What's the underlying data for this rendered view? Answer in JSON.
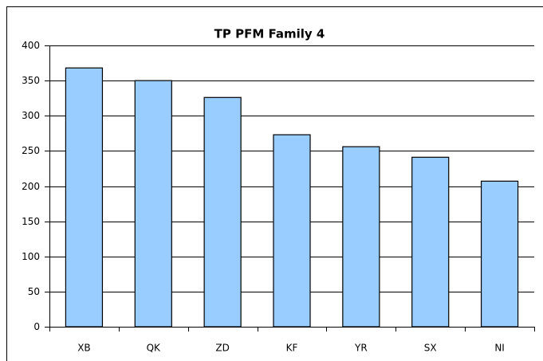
{
  "chart_data": {
    "type": "bar",
    "title": "TP PFM Family 4",
    "categories": [
      "XB",
      "QK",
      "ZD",
      "KF",
      "YR",
      "SX",
      "NI"
    ],
    "values": [
      368,
      350,
      326,
      273,
      256,
      241,
      207
    ],
    "color": "#99ccff",
    "ylim": [
      0,
      400
    ],
    "yticks": [
      0,
      50,
      100,
      150,
      200,
      250,
      300,
      350,
      400
    ],
    "grid": true
  }
}
